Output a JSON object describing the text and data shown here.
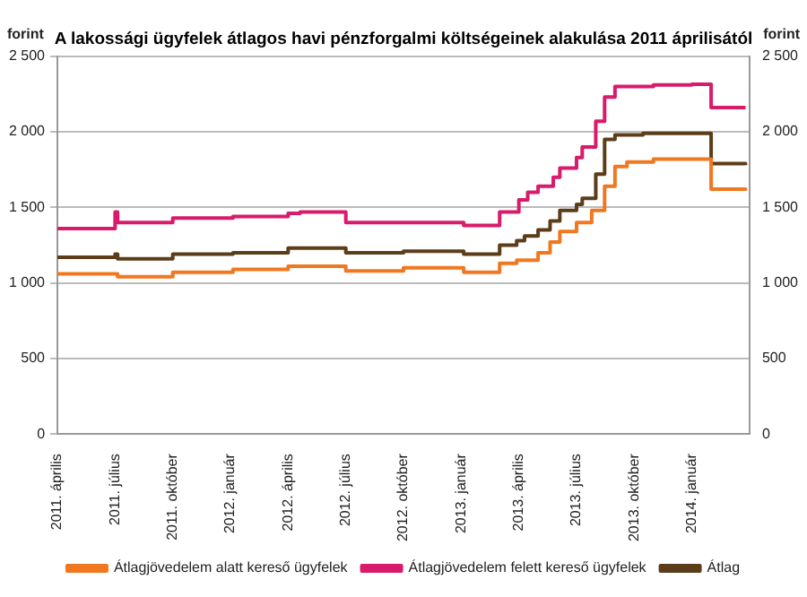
{
  "chart_data": {
    "type": "step",
    "title": "A lakossági ügyfelek átlagos havi pénzforgalmi költségeinek alakulása 2011 áprilisától",
    "ylabel": "forint",
    "y2label": "forint",
    "series": [
      {
        "name": "Átlagjövedelem alatt kereső ügyfelek",
        "color": "#f07820",
        "x": [
          "2011-04-01",
          "2011-07-01",
          "2011-07-05",
          "2011-10-01",
          "2012-01-05",
          "2012-04-01",
          "2012-07-01",
          "2012-10-01",
          "2013-01-05",
          "2013-03-01",
          "2013-03-28",
          "2013-05-01",
          "2013-05-20",
          "2013-06-05",
          "2013-07-01",
          "2013-07-25",
          "2013-08-15",
          "2013-09-01",
          "2013-09-20",
          "2013-11-01",
          "2014-02-01",
          "2014-03-25"
        ],
        "values": [
          1060,
          1060,
          1040,
          1070,
          1090,
          1110,
          1080,
          1100,
          1070,
          1130,
          1150,
          1200,
          1270,
          1340,
          1400,
          1480,
          1640,
          1770,
          1800,
          1820,
          1620,
          1610
        ]
      },
      {
        "name": "Átlagjövedelem felett kereső ügyfelek",
        "color": "#d81b6a",
        "x": [
          "2011-04-01",
          "2011-07-01",
          "2011-07-05",
          "2011-10-01",
          "2012-01-05",
          "2012-04-01",
          "2012-04-20",
          "2012-07-01",
          "2013-01-05",
          "2013-03-01",
          "2013-04-01",
          "2013-04-15",
          "2013-05-01",
          "2013-05-25",
          "2013-06-05",
          "2013-07-01",
          "2013-07-10",
          "2013-08-01",
          "2013-08-15",
          "2013-09-01",
          "2013-11-01",
          "2014-01-01",
          "2014-02-01",
          "2014-03-25"
        ],
        "values": [
          1360,
          1470,
          1400,
          1430,
          1440,
          1460,
          1470,
          1400,
          1380,
          1470,
          1550,
          1600,
          1640,
          1700,
          1760,
          1830,
          1900,
          2070,
          2230,
          2300,
          2310,
          2315,
          2160,
          2160
        ]
      },
      {
        "name": "Átlag",
        "color": "#5c3d1a",
        "x": [
          "2011-04-01",
          "2011-07-01",
          "2011-07-05",
          "2011-10-01",
          "2012-01-05",
          "2012-04-01",
          "2012-07-01",
          "2012-10-01",
          "2013-01-05",
          "2013-03-01",
          "2013-03-28",
          "2013-04-10",
          "2013-05-01",
          "2013-05-20",
          "2013-06-05",
          "2013-07-01",
          "2013-07-10",
          "2013-08-01",
          "2013-08-15",
          "2013-09-01",
          "2013-10-15",
          "2014-02-01",
          "2014-03-25"
        ],
        "values": [
          1170,
          1190,
          1160,
          1190,
          1200,
          1230,
          1200,
          1210,
          1190,
          1250,
          1280,
          1310,
          1350,
          1410,
          1480,
          1520,
          1560,
          1720,
          1950,
          1980,
          1990,
          1790,
          1780
        ]
      }
    ],
    "xlim": [
      "2011-04-01",
      "2014-04-01"
    ],
    "xticks": [
      {
        "value": "2011-04-01",
        "label": "2011. április"
      },
      {
        "value": "2011-07-01",
        "label": "2011. július"
      },
      {
        "value": "2011-10-01",
        "label": "2011. október"
      },
      {
        "value": "2012-01-01",
        "label": "2012. január"
      },
      {
        "value": "2012-04-01",
        "label": "2012. április"
      },
      {
        "value": "2012-07-01",
        "label": "2012. július"
      },
      {
        "value": "2012-10-01",
        "label": "2012. október"
      },
      {
        "value": "2013-01-01",
        "label": "2013. január"
      },
      {
        "value": "2013-04-01",
        "label": "2013. április"
      },
      {
        "value": "2013-07-01",
        "label": "2013. július"
      },
      {
        "value": "2013-10-01",
        "label": "2013. október"
      },
      {
        "value": "2014-01-01",
        "label": "2014. január"
      }
    ],
    "ylim": [
      0,
      2500
    ],
    "yticks": [
      0,
      500,
      {
        "value": 1000,
        "label": "1 000"
      },
      {
        "value": 1500,
        "label": "1 500"
      },
      {
        "value": 2000,
        "label": "2 000"
      },
      {
        "value": 2500,
        "label": "2 500"
      }
    ],
    "y2lim": [
      0,
      2500
    ],
    "y2ticks": [
      0,
      500,
      {
        "value": 1000,
        "label": "1 000"
      },
      {
        "value": 1500,
        "label": "1 500"
      },
      {
        "value": 2000,
        "label": "2 000"
      },
      {
        "value": 2500,
        "label": "2 500"
      }
    ],
    "grid": "y",
    "legend": "bottom",
    "line_style": "solid",
    "marker": "none"
  }
}
